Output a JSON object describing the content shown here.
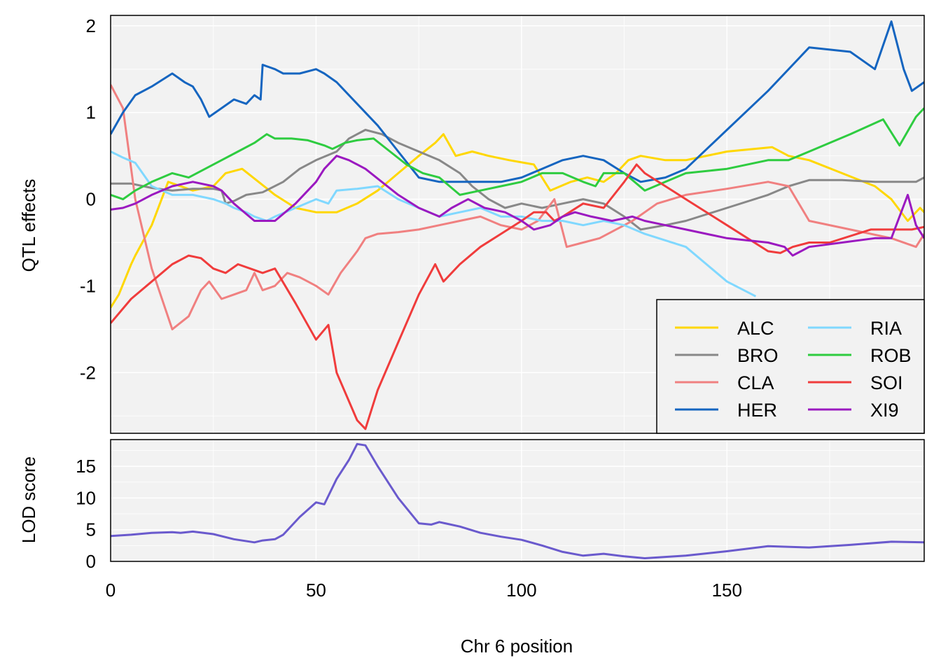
{
  "chart_data": [
    {
      "type": "line",
      "ylabel": "QTL effects",
      "ylim": [
        -2.7,
        2.12
      ],
      "yticks": [
        -2,
        -1,
        0,
        1,
        2
      ],
      "xlim": [
        0,
        198
      ],
      "grid": true,
      "legend": {
        "placement": "bottom-right",
        "columns": 2
      },
      "series": [
        {
          "name": "ALC",
          "color": "#FFD700",
          "x": [
            0,
            2,
            5,
            6,
            10,
            14,
            20,
            25,
            28,
            32,
            36,
            40,
            45,
            50,
            55,
            60,
            65,
            70,
            75,
            79,
            81,
            84,
            88,
            92,
            97,
            103,
            107,
            112,
            116,
            120,
            123,
            126,
            129,
            135,
            140,
            150,
            161,
            165,
            170,
            178,
            186,
            190,
            194,
            197,
            198
          ],
          "y": [
            -1.25,
            -1.1,
            -0.75,
            -0.65,
            -0.3,
            0.2,
            0.1,
            0.15,
            0.3,
            0.35,
            0.2,
            0.05,
            -0.1,
            -0.15,
            -0.15,
            -0.05,
            0.1,
            0.3,
            0.5,
            0.65,
            0.75,
            0.5,
            0.55,
            0.5,
            0.45,
            0.4,
            0.1,
            0.2,
            0.25,
            0.2,
            0.3,
            0.45,
            0.5,
            0.45,
            0.45,
            0.55,
            0.6,
            0.5,
            0.45,
            0.3,
            0.15,
            0.0,
            -0.25,
            -0.1,
            -0.15
          ]
        },
        {
          "name": "BRO",
          "color": "#888888",
          "x": [
            0,
            5,
            10,
            15,
            20,
            25,
            27,
            28,
            30,
            33,
            37,
            42,
            46,
            50,
            55,
            58,
            62,
            66,
            70,
            75,
            80,
            85,
            88,
            92,
            96,
            100,
            105,
            110,
            115,
            120,
            125,
            129,
            135,
            140,
            150,
            160,
            165,
            170,
            178,
            186,
            192,
            196,
            198
          ],
          "y": [
            0.18,
            0.18,
            0.13,
            0.1,
            0.12,
            0.12,
            0.1,
            -0.05,
            -0.02,
            0.05,
            0.08,
            0.2,
            0.35,
            0.45,
            0.55,
            0.7,
            0.8,
            0.75,
            0.65,
            0.55,
            0.45,
            0.3,
            0.15,
            0.0,
            -0.1,
            -0.05,
            -0.1,
            -0.05,
            0.0,
            -0.05,
            -0.2,
            -0.35,
            -0.3,
            -0.25,
            -0.1,
            0.05,
            0.15,
            0.22,
            0.22,
            0.2,
            0.2,
            0.2,
            0.25
          ]
        },
        {
          "name": "CLA",
          "color": "#F08080",
          "x": [
            0,
            3,
            6,
            10,
            15,
            19,
            22,
            24,
            27,
            30,
            33,
            35,
            37,
            40,
            43,
            46,
            48,
            50,
            53,
            56,
            60,
            62,
            65,
            70,
            75,
            80,
            85,
            90,
            95,
            100,
            104,
            108,
            111,
            115,
            119,
            123,
            127,
            133,
            140,
            150,
            160,
            165,
            170,
            180,
            190,
            196,
            198
          ],
          "y": [
            1.32,
            1.05,
            0.0,
            -0.8,
            -1.5,
            -1.35,
            -1.05,
            -0.95,
            -1.15,
            -1.1,
            -1.05,
            -0.85,
            -1.05,
            -1.0,
            -0.85,
            -0.9,
            -0.95,
            -1.0,
            -1.1,
            -0.85,
            -0.6,
            -0.45,
            -0.4,
            -0.38,
            -0.35,
            -0.3,
            -0.25,
            -0.2,
            -0.3,
            -0.35,
            -0.25,
            0.0,
            -0.55,
            -0.5,
            -0.45,
            -0.35,
            -0.25,
            -0.05,
            0.05,
            0.12,
            0.2,
            0.15,
            -0.25,
            -0.35,
            -0.45,
            -0.55,
            -0.4
          ]
        },
        {
          "name": "HER",
          "color": "#1565C0",
          "x": [
            0,
            3,
            6,
            10,
            15,
            18,
            20,
            22,
            24,
            27,
            30,
            33,
            35,
            36.5,
            37,
            40,
            42,
            46,
            50,
            52,
            55,
            60,
            65,
            70,
            75,
            80,
            85,
            90,
            95,
            100,
            105,
            110,
            115,
            120,
            125,
            129,
            135,
            140,
            150,
            160,
            170,
            180,
            186,
            190,
            193,
            195,
            198
          ],
          "y": [
            0.75,
            1.0,
            1.2,
            1.3,
            1.45,
            1.35,
            1.3,
            1.15,
            0.95,
            1.05,
            1.15,
            1.1,
            1.2,
            1.15,
            1.55,
            1.5,
            1.45,
            1.45,
            1.5,
            1.45,
            1.35,
            1.1,
            0.85,
            0.55,
            0.25,
            0.2,
            0.2,
            0.2,
            0.2,
            0.25,
            0.35,
            0.45,
            0.5,
            0.45,
            0.3,
            0.2,
            0.25,
            0.35,
            0.8,
            1.25,
            1.75,
            1.7,
            1.5,
            2.05,
            1.5,
            1.25,
            1.35
          ]
        },
        {
          "name": "RIA",
          "color": "#80D8FF",
          "x": [
            0,
            3,
            6,
            10,
            15,
            20,
            25,
            28,
            30,
            33,
            35,
            38,
            40,
            45,
            50,
            53,
            55,
            60,
            65,
            70,
            75,
            80,
            85,
            90,
            95,
            100,
            105,
            110,
            115,
            120,
            125,
            130,
            140,
            150,
            157
          ],
          "y": [
            0.55,
            0.48,
            0.42,
            0.15,
            0.05,
            0.05,
            0.0,
            -0.05,
            -0.1,
            -0.15,
            -0.2,
            -0.25,
            -0.2,
            -0.1,
            0.0,
            -0.05,
            0.1,
            0.12,
            0.15,
            0.0,
            -0.1,
            -0.2,
            -0.15,
            -0.1,
            -0.2,
            -0.2,
            -0.25,
            -0.25,
            -0.3,
            -0.25,
            -0.3,
            -0.4,
            -0.55,
            -0.95,
            -1.12
          ]
        },
        {
          "name": "ROB",
          "color": "#2ECC40",
          "x": [
            0,
            3,
            6,
            10,
            15,
            19,
            23,
            27,
            31,
            35,
            38,
            40,
            44,
            48,
            52,
            54,
            57,
            60,
            64,
            68,
            72,
            76,
            80,
            85,
            90,
            95,
            100,
            105,
            110,
            115,
            118,
            120,
            125,
            130,
            135,
            140,
            150,
            160,
            165,
            170,
            175,
            180,
            188,
            192,
            196,
            198
          ],
          "y": [
            0.05,
            0.0,
            0.1,
            0.2,
            0.3,
            0.25,
            0.35,
            0.45,
            0.55,
            0.65,
            0.75,
            0.7,
            0.7,
            0.68,
            0.62,
            0.58,
            0.65,
            0.68,
            0.7,
            0.55,
            0.4,
            0.3,
            0.25,
            0.05,
            0.1,
            0.15,
            0.2,
            0.3,
            0.3,
            0.2,
            0.15,
            0.3,
            0.3,
            0.1,
            0.2,
            0.3,
            0.35,
            0.45,
            0.45,
            0.55,
            0.65,
            0.75,
            0.92,
            0.62,
            0.95,
            1.05
          ]
        },
        {
          "name": "SOI",
          "color": "#F03C3C",
          "x": [
            0,
            5,
            10,
            15,
            19,
            22,
            25,
            28,
            31,
            34,
            37,
            40,
            45,
            50,
            53,
            55,
            60,
            62,
            65,
            70,
            75,
            79,
            81,
            85,
            90,
            95,
            100,
            103,
            106,
            108,
            110,
            115,
            120,
            125,
            128,
            130,
            135,
            140,
            150,
            160,
            163,
            166,
            170,
            175,
            185,
            195,
            198
          ],
          "y": [
            -1.43,
            -1.15,
            -0.95,
            -0.75,
            -0.65,
            -0.68,
            -0.8,
            -0.85,
            -0.75,
            -0.8,
            -0.85,
            -0.8,
            -1.2,
            -1.62,
            -1.45,
            -2.0,
            -2.55,
            -2.65,
            -2.2,
            -1.65,
            -1.1,
            -0.75,
            -0.95,
            -0.75,
            -0.55,
            -0.4,
            -0.25,
            -0.15,
            -0.15,
            -0.25,
            -0.2,
            -0.05,
            -0.1,
            0.2,
            0.4,
            0.3,
            0.15,
            0.0,
            -0.3,
            -0.6,
            -0.62,
            -0.55,
            -0.5,
            -0.5,
            -0.35,
            -0.35,
            -0.32
          ]
        },
        {
          "name": "XI9",
          "color": "#9B19C0",
          "x": [
            0,
            3,
            6,
            10,
            15,
            20,
            25,
            27,
            30,
            35,
            40,
            45,
            50,
            52,
            55,
            58,
            62,
            66,
            70,
            75,
            80,
            83,
            87,
            91,
            96,
            100,
            103,
            107,
            110,
            113,
            117,
            122,
            127,
            130,
            135,
            140,
            150,
            160,
            164,
            166,
            170,
            178,
            186,
            190,
            194,
            196,
            198
          ],
          "y": [
            -0.12,
            -0.1,
            -0.05,
            0.05,
            0.15,
            0.2,
            0.15,
            0.1,
            -0.05,
            -0.25,
            -0.25,
            -0.05,
            0.2,
            0.35,
            0.5,
            0.45,
            0.35,
            0.2,
            0.05,
            -0.1,
            -0.2,
            -0.1,
            0.0,
            -0.1,
            -0.15,
            -0.25,
            -0.35,
            -0.3,
            -0.2,
            -0.15,
            -0.2,
            -0.25,
            -0.2,
            -0.25,
            -0.3,
            -0.35,
            -0.45,
            -0.5,
            -0.55,
            -0.65,
            -0.55,
            -0.5,
            -0.45,
            -0.45,
            0.05,
            -0.3,
            -0.45
          ]
        }
      ]
    },
    {
      "type": "line",
      "xlabel": "Chr 6 position",
      "ylabel": "LOD score",
      "ylim": [
        0,
        19.2
      ],
      "yticks": [
        0,
        5,
        10,
        15
      ],
      "xlim": [
        0,
        198
      ],
      "xticks": [
        0,
        50,
        100,
        150
      ],
      "grid": true,
      "series": [
        {
          "color": "#6A5ACD",
          "x": [
            0,
            5,
            10,
            15,
            17,
            20,
            25,
            30,
            35,
            37,
            40,
            42,
            46,
            50,
            52,
            55,
            58,
            60,
            62,
            65,
            70,
            75,
            78,
            80,
            85,
            90,
            95,
            100,
            105,
            110,
            115,
            120,
            125,
            130,
            140,
            150,
            160,
            170,
            180,
            190,
            198
          ],
          "y": [
            4.0,
            4.2,
            4.5,
            4.6,
            4.5,
            4.7,
            4.3,
            3.5,
            3.0,
            3.3,
            3.5,
            4.2,
            7.0,
            9.3,
            9.0,
            13.0,
            16.0,
            18.5,
            18.3,
            15.0,
            10.0,
            6.0,
            5.8,
            6.2,
            5.5,
            4.5,
            3.9,
            3.4,
            2.5,
            1.5,
            0.9,
            1.2,
            0.8,
            0.5,
            0.9,
            1.6,
            2.4,
            2.2,
            2.6,
            3.1,
            3.0
          ]
        }
      ]
    }
  ]
}
